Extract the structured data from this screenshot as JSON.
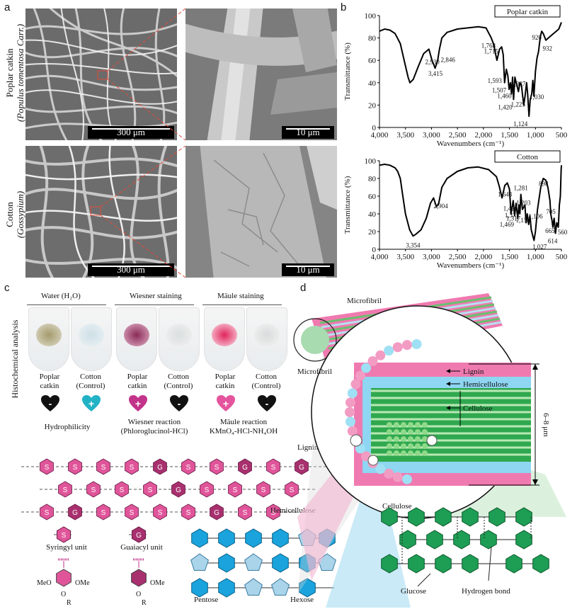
{
  "panel_labels": {
    "a": "a",
    "b": "b",
    "c": "c",
    "d": "d"
  },
  "panel_a": {
    "row1_label_line1": "Poplar catkin",
    "row1_label_line2": "(Populus tomentosa Carr.)",
    "row2_label_line1": "Cotton",
    "row2_label_line2": "(Gossypium)",
    "scale_low": "300 μm",
    "scale_high": "10 μm"
  },
  "panel_b": {
    "chart_data": [
      {
        "type": "line",
        "legend": "Poplar catkin",
        "xlabel": "Wavenumbers (cm⁻¹)",
        "ylabel": "Transmittance (%)",
        "xlim": [
          4000,
          500
        ],
        "ylim": [
          0,
          100
        ],
        "xticks": [
          "4,000",
          "3,500",
          "3,000",
          "2,500",
          "2,000",
          "1,500",
          "1,000",
          "500"
        ],
        "yticks": [
          "0",
          "20",
          "40",
          "60",
          "80",
          "100"
        ],
        "x": [
          4000,
          3900,
          3800,
          3700,
          3600,
          3500,
          3450,
          3415,
          3350,
          3250,
          3150,
          3050,
          2990,
          2930,
          2880,
          2846,
          2800,
          2700,
          2500,
          2300,
          2100,
          1950,
          1850,
          1800,
          1768,
          1740,
          1715,
          1690,
          1650,
          1620,
          1593,
          1560,
          1530,
          1507,
          1480,
          1460,
          1440,
          1420,
          1395,
          1370,
          1327,
          1300,
          1270,
          1250,
          1225,
          1200,
          1170,
          1150,
          1124,
          1100,
          1070,
          1050,
          1030,
          1000,
          970,
          940,
          920,
          900,
          880,
          850,
          800,
          700,
          600,
          550,
          500
        ],
        "y": [
          86,
          88,
          87,
          84,
          75,
          55,
          45,
          40,
          43,
          55,
          66,
          70,
          60,
          53,
          60,
          70,
          80,
          85,
          88,
          89,
          90,
          89,
          80,
          74,
          66,
          60,
          65,
          70,
          72,
          65,
          40,
          52,
          46,
          34,
          40,
          30,
          45,
          25,
          45,
          40,
          32,
          40,
          38,
          30,
          20,
          28,
          40,
          30,
          10,
          25,
          30,
          42,
          28,
          50,
          62,
          68,
          76,
          82,
          86,
          84,
          78,
          82,
          86,
          88,
          94
        ],
        "annotations": [
          "3,415",
          "2,930",
          "2,846",
          "1,768",
          "1,715",
          "1,593",
          "1,507",
          "1,460",
          "1,420",
          "1,327",
          "1,225",
          "1,124",
          "1,030",
          "920",
          "932"
        ]
      },
      {
        "type": "line",
        "legend": "Cotton",
        "xlabel": "Wavenumbers (cm⁻¹)",
        "ylabel": "Transmittance (%)",
        "xlim": [
          4000,
          500
        ],
        "ylim": [
          0,
          100
        ],
        "xticks": [
          "4,000",
          "3,500",
          "3,000",
          "2,500",
          "2,000",
          "1,500",
          "1,000",
          "500"
        ],
        "yticks": [
          "0",
          "20",
          "40",
          "60",
          "80",
          "100"
        ],
        "x": [
          4000,
          3900,
          3800,
          3700,
          3650,
          3600,
          3550,
          3500,
          3420,
          3354,
          3300,
          3200,
          3100,
          3020,
          2960,
          2904,
          2860,
          2800,
          2700,
          2500,
          2300,
          2100,
          1900,
          1750,
          1700,
          1643,
          1590,
          1540,
          1500,
          1469,
          1428,
          1400,
          1371,
          1340,
          1317,
          1300,
          1281,
          1250,
          1203,
          1180,
          1158,
          1130,
          1106,
          1080,
          1050,
          1027,
          1000,
          960,
          898,
          850,
          800,
          760,
          720,
          705,
          680,
          665,
          640,
          614,
          590,
          560,
          540,
          520,
          505,
          500
        ],
        "y": [
          95,
          96,
          95,
          92,
          88,
          80,
          60,
          40,
          22,
          15,
          17,
          22,
          35,
          52,
          58,
          48,
          52,
          70,
          80,
          88,
          92,
          93,
          90,
          82,
          72,
          58,
          72,
          75,
          68,
          40,
          55,
          38,
          52,
          35,
          50,
          40,
          62,
          45,
          50,
          30,
          40,
          28,
          38,
          22,
          15,
          10,
          20,
          45,
          70,
          80,
          78,
          70,
          55,
          40,
          32,
          25,
          35,
          18,
          30,
          25,
          50,
          60,
          90,
          95
        ],
        "annotations": [
          "3,354",
          "2,904",
          "1,643",
          "1,428",
          "1,469",
          "1,371",
          "1,317",
          "1,281",
          "1,203",
          "1,158",
          "1,106",
          "1,027",
          "898",
          "705",
          "665",
          "614",
          "560"
        ]
      }
    ]
  },
  "panel_c": {
    "side_label": "Histochemical analysis",
    "group_water": "Water (H₂O)",
    "group_wiesner": "Wiesner staining",
    "group_maule": "Mäule staining",
    "sample_poplar": [
      "Poplar",
      "catkin"
    ],
    "sample_cotton": [
      "Cotton",
      "(Control)"
    ],
    "hearts": [
      {
        "sign": "-",
        "color": "#111111"
      },
      {
        "sign": "+",
        "color": "#22b2c6"
      },
      {
        "sign": "+",
        "color": "#c2338a"
      },
      {
        "sign": "-",
        "color": "#111111"
      },
      {
        "sign": "+",
        "color": "#e4559d"
      },
      {
        "sign": "-",
        "color": "#111111"
      }
    ],
    "caption_hydro": "Hydrophilicity",
    "caption_wiesner_1": "Wiesner reaction",
    "caption_wiesner_2": "(Phloroglucinol-HCl)",
    "caption_maule_1": "Mäule reaction",
    "caption_maule_2": "KMnO₄-HCl-NH₄OH",
    "lignin_title": "Lignin",
    "lignin_rows": [
      [
        "S",
        "S",
        "S",
        "S",
        "G",
        "S",
        "S",
        "G",
        "S",
        "G"
      ],
      [
        "S",
        "S",
        "S",
        "S",
        "G",
        "S",
        "S",
        "S",
        "S"
      ],
      [
        "S",
        "G",
        "S",
        "S",
        "S",
        "S",
        "G",
        "S",
        "S"
      ]
    ],
    "syringyl_letter": "S",
    "guaiacyl_letter": "G",
    "syringyl_label": "Syringyl unit",
    "guaiacyl_label": "Guaiacyl unit",
    "meo": "MeO",
    "ome": "OMe",
    "o_atom": "O",
    "r_group": "R",
    "hemicellulose_label": "Hemicellulose",
    "pentose_label": "Pentose",
    "hexose_label": "Hexose"
  },
  "panel_d": {
    "microfibril_top": "Microfibril",
    "microfibril_mid": "Microfibril",
    "lignin": "Lignin",
    "hemicellulose": "Hemicellulose",
    "cellulose": "Cellulose",
    "dimension": "6–8 μm",
    "cellulose_title": "Cellulose",
    "glucose": "Glucose",
    "hydrogen_bond": "Hydrogen bond"
  },
  "colors": {
    "lignin_s": "#e0559a",
    "lignin_g": "#a8306e",
    "hemicellulose": "#1aa3dc",
    "pentose": "#a9d4ea",
    "cellulose": "#1e9d55",
    "pink_band": "#ef7ab0"
  }
}
